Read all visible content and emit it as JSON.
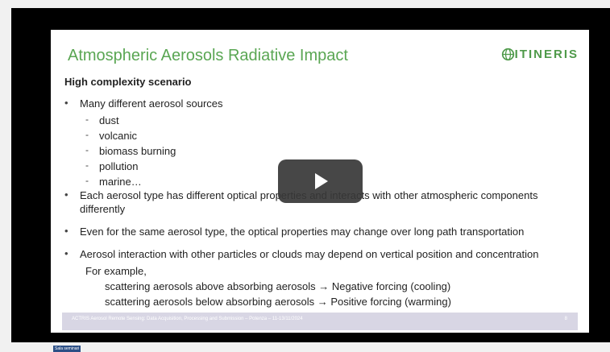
{
  "slide": {
    "title": "Atmospheric Aerosols Radiative Impact",
    "logo": "ITINERIS",
    "subtitle": "High complexity  scenario",
    "bullets": [
      {
        "text": "Many different aerosol sources",
        "items": [
          "dust",
          "volcanic",
          "biomass burning",
          "pollution",
          "marine…"
        ]
      },
      {
        "text": "Each aerosol type has different optical properties and interacts with other atmospheric components differently"
      },
      {
        "text": "Even for the same aerosol type, the optical properties may change over long path transportation"
      },
      {
        "text": "Aerosol interaction with other particles or clouds may depend on vertical position and concentration",
        "example": "For example,",
        "lines": [
          "scattering aerosols above absorbing aerosols → Negative forcing (cooling)",
          "scattering aerosols below absorbing aerosols → Positive forcing (warming)"
        ]
      }
    ],
    "footer": "ACTRIS Aerosol Remote Sensing: Data Acquisition, Processing and Submission – Potenza – 11-13/11/2024",
    "page": "8"
  },
  "room_label": "Sala seminari"
}
